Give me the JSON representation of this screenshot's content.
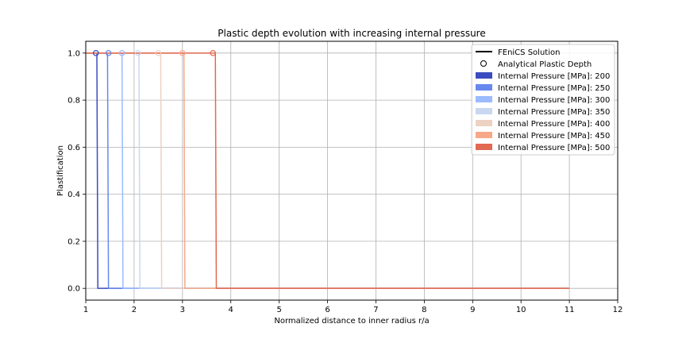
{
  "chart_data": {
    "type": "line",
    "title": "Plastic depth evolution with increasing internal pressure",
    "xlabel": "Normalized distance to inner radius r/a",
    "ylabel": "Plastification",
    "xlim": [
      1,
      12
    ],
    "ylim": [
      -0.05,
      1.05
    ],
    "xticks": [
      1,
      2,
      3,
      4,
      5,
      6,
      7,
      8,
      9,
      10,
      11,
      12
    ],
    "yticks": [
      0.0,
      0.2,
      0.4,
      0.6,
      0.8,
      1.0
    ],
    "ytick_labels": [
      "0.0",
      "0.2",
      "0.4",
      "0.6",
      "0.8",
      "1.0"
    ],
    "grid": true,
    "legend_position": "top-right",
    "legend": {
      "line_label": "FEniCS Solution",
      "marker_label": "Analytical Plastic Depth"
    },
    "x_range_end": 11,
    "series": [
      {
        "name": "Internal Pressure [MPa]: 200",
        "color": "#3b4cc0",
        "step_x": 1.25,
        "analytical_x": 1.21
      },
      {
        "name": "Internal Pressure [MPa]: 250",
        "color": "#6788ee",
        "step_x": 1.47,
        "analytical_x": 1.47
      },
      {
        "name": "Internal Pressure [MPa]: 300",
        "color": "#9abbff",
        "step_x": 1.77,
        "analytical_x": 1.75
      },
      {
        "name": "Internal Pressure [MPa]: 350",
        "color": "#c9d7f0",
        "step_x": 2.12,
        "analytical_x": 2.08
      },
      {
        "name": "Internal Pressure [MPa]: 400",
        "color": "#edd1c2",
        "step_x": 2.57,
        "analytical_x": 2.5
      },
      {
        "name": "Internal Pressure [MPa]: 450",
        "color": "#f7a889",
        "step_x": 3.05,
        "analytical_x": 3.0
      },
      {
        "name": "Internal Pressure [MPa]: 500",
        "color": "#e26952",
        "step_x": 3.7,
        "analytical_x": 3.63
      }
    ]
  }
}
